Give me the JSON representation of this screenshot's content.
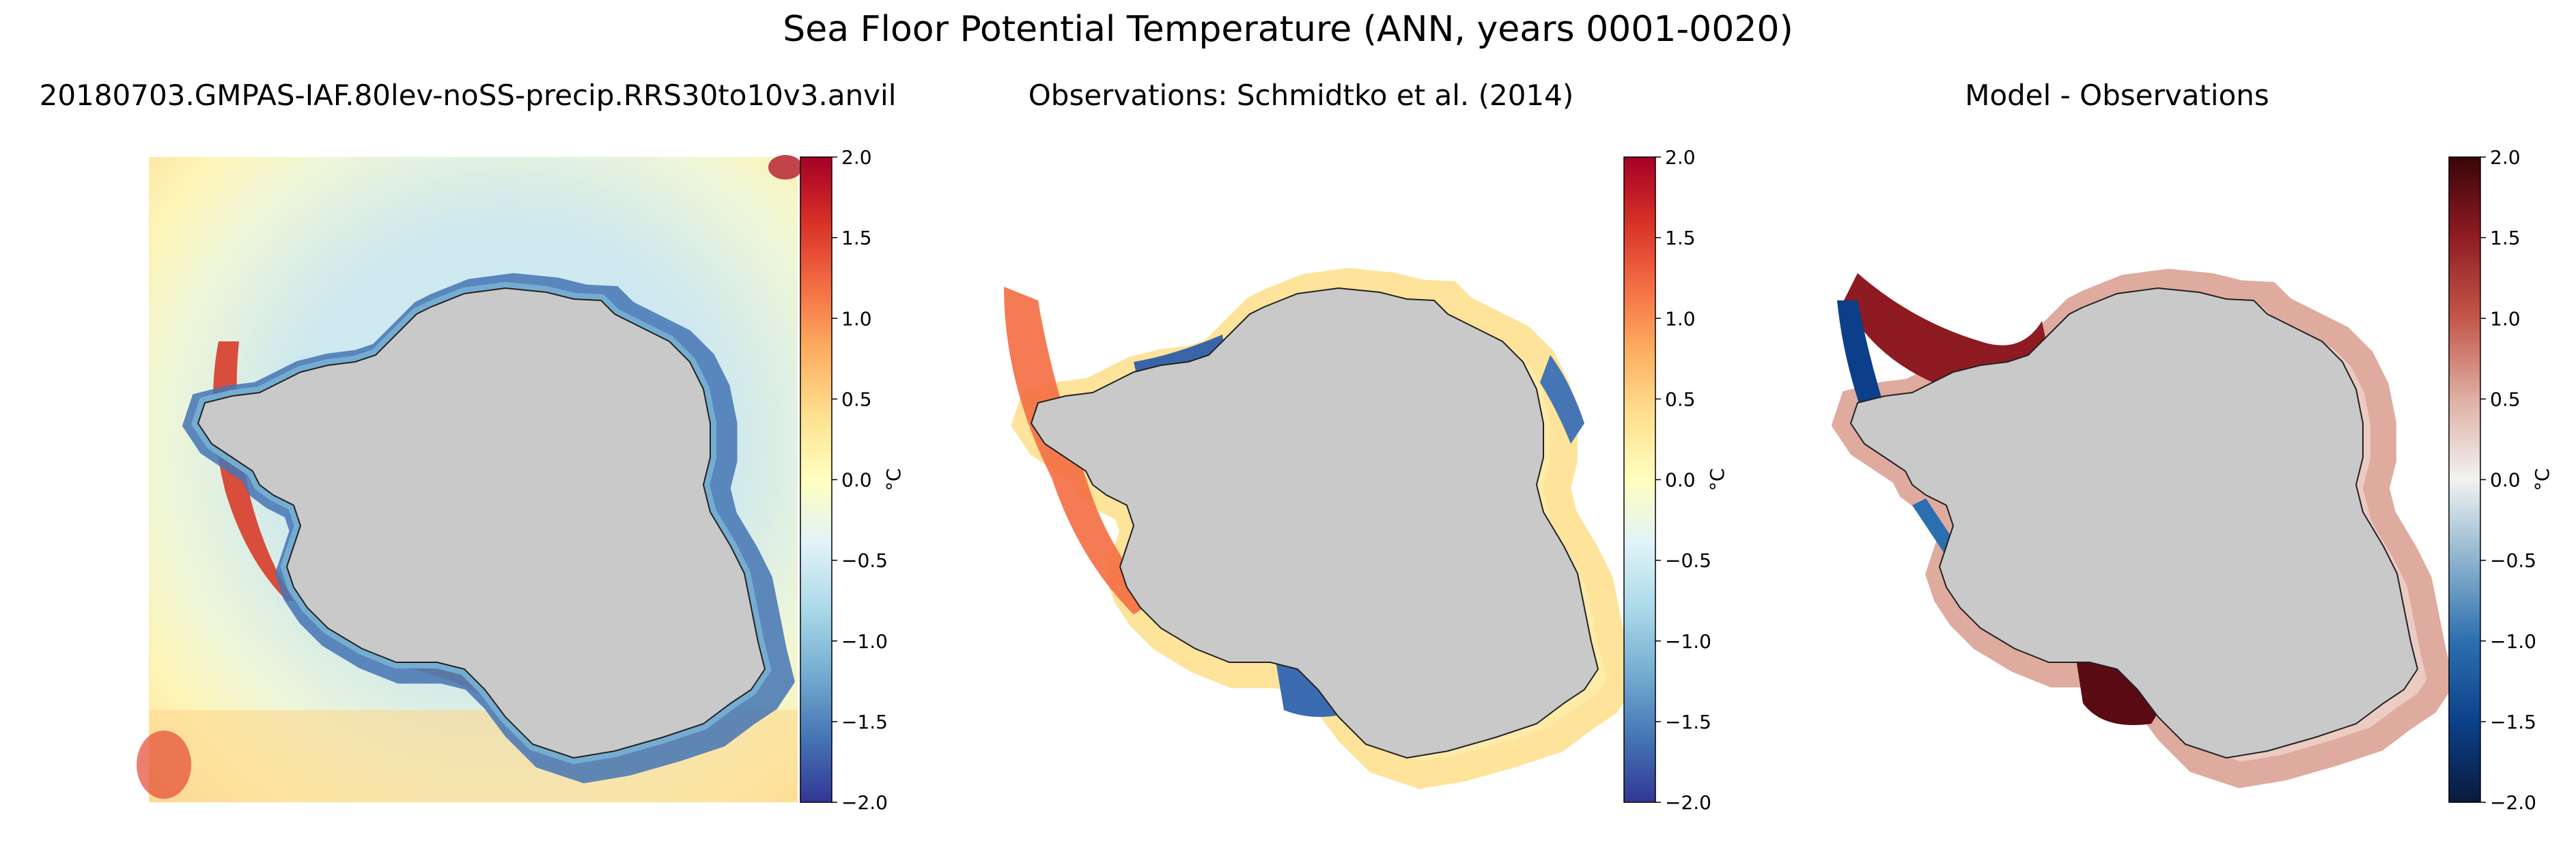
{
  "figure": {
    "title": "Sea Floor Potential Temperature (ANN, years 0001-0020)"
  },
  "chart_data": [
    {
      "type": "heatmap",
      "title": "20180703.GMPAS-IAF.80lev-noSS-precip.RRS30to10v3.anvil",
      "colormap": "RdYlBu_r",
      "colorbar": {
        "label": "°C",
        "vmin": -2.0,
        "vmax": 2.0,
        "ticks": [
          2.0,
          1.5,
          1.0,
          0.5,
          0.0,
          -0.5,
          -1.0,
          -1.5,
          -2.0
        ],
        "tick_labels": [
          "2.0",
          "1.5",
          "1.0",
          "0.5",
          "0.0",
          "−0.5",
          "−1.0",
          "−1.5",
          "−2.0"
        ]
      },
      "land_color": "#c9c9c9",
      "coverage": "full domain (model)"
    },
    {
      "type": "heatmap",
      "title": "Observations: Schmidtko et al. (2014)",
      "colormap": "RdYlBu_r",
      "colorbar": {
        "label": "°C",
        "vmin": -2.0,
        "vmax": 2.0,
        "ticks": [
          2.0,
          1.5,
          1.0,
          0.5,
          0.0,
          -0.5,
          -1.0,
          -1.5,
          -2.0
        ],
        "tick_labels": [
          "2.0",
          "1.5",
          "1.0",
          "0.5",
          "0.0",
          "−0.5",
          "−1.0",
          "−1.5",
          "−2.0"
        ]
      },
      "land_color": "#c9c9c9",
      "coverage": "continental shelf only"
    },
    {
      "type": "heatmap",
      "title": "Model - Observations",
      "colormap": "RdBu_r (diverging, dark ends)",
      "colorbar": {
        "label": "°C",
        "vmin": -2.0,
        "vmax": 2.0,
        "ticks": [
          2.0,
          1.5,
          1.0,
          0.5,
          0.0,
          -0.5,
          -1.0,
          -1.5,
          -2.0
        ],
        "tick_labels": [
          "2.0",
          "1.5",
          "1.0",
          "0.5",
          "0.0",
          "−0.5",
          "−1.0",
          "−1.5",
          "−2.0"
        ]
      },
      "land_color": "#c9c9c9",
      "coverage": "continental shelf only"
    }
  ],
  "colors": {
    "land": "#c9c9c9",
    "coast": "#222222"
  }
}
